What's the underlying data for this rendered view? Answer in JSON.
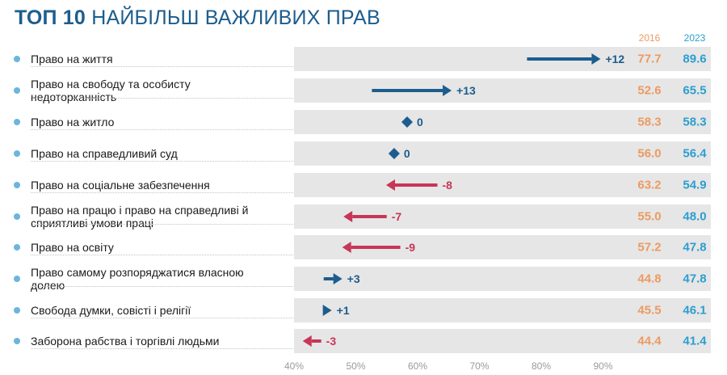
{
  "title": {
    "bold": "ТОП 10",
    "rest": "НАЙБІЛЬШ ВАЖЛИВИХ ПРАВ"
  },
  "year_labels": [
    "2016",
    "2023"
  ],
  "colors": {
    "increase": "#1d5d8e",
    "decrease": "#c83557",
    "value_2016": "#ed9a62",
    "value_2023": "#2c9ed0"
  },
  "chart_data": {
    "type": "arrow",
    "xlim": [
      40,
      100
    ],
    "ticks": [
      "40%",
      "50%",
      "60%",
      "70%",
      "80%",
      "90%"
    ],
    "tick_values": [
      40,
      50,
      60,
      70,
      80,
      90
    ],
    "rows": [
      {
        "label": "Право на життя",
        "v2016": "77.7",
        "v2023": "89.6",
        "change": "+12"
      },
      {
        "label": "Право на свободу та особисту недоторканність",
        "v2016": "52.6",
        "v2023": "65.5",
        "change": "+13"
      },
      {
        "label": "Право на житло",
        "v2016": "58.3",
        "v2023": "58.3",
        "change": "0"
      },
      {
        "label": "Право на справедливий суд",
        "v2016": "56.0",
        "v2023": "56.4",
        "change": "0"
      },
      {
        "label": "Право на соціальне забезпечення",
        "v2016": "63.2",
        "v2023": "54.9",
        "change": "-8"
      },
      {
        "label": "Право на працю і право на справедливі й сприятливі умови праці",
        "v2016": "55.0",
        "v2023": "48.0",
        "change": "-7"
      },
      {
        "label": "Право на освіту",
        "v2016": "57.2",
        "v2023": "47.8",
        "change": "-9"
      },
      {
        "label": "Право самому розпоряджатися власною долею",
        "v2016": "44.8",
        "v2023": "47.8",
        "change": "+3"
      },
      {
        "label": "Свобода думки, совісті і релігії",
        "v2016": "45.5",
        "v2023": "46.1",
        "change": "+1"
      },
      {
        "label": "Заборона рабства і торгівлі людьми",
        "v2016": "44.4",
        "v2023": "41.4",
        "change": "-3"
      }
    ]
  }
}
